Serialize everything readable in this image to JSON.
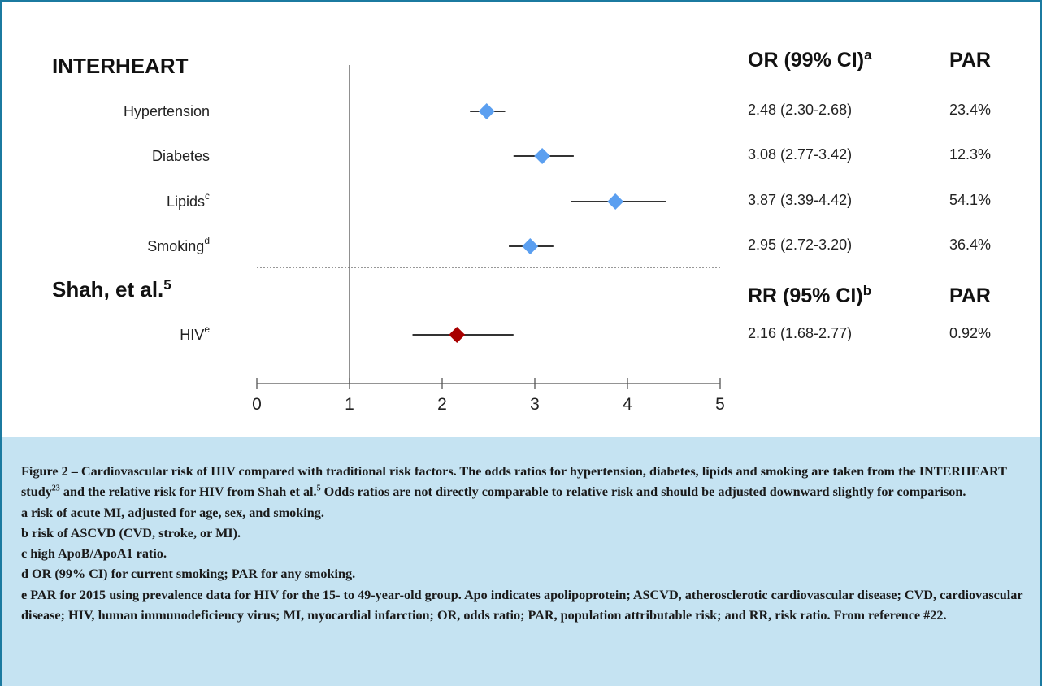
{
  "chart_data": {
    "type": "forest",
    "xlim": [
      0,
      5
    ],
    "xticks": [
      "0",
      "1",
      "2",
      "3",
      "4",
      "5"
    ],
    "reference_line": 1,
    "sections": [
      {
        "heading": "INTERHEART",
        "heading_sup": "",
        "col_header_stat": "OR (99% CI)",
        "col_header_stat_sup": "a",
        "col_header_par": "PAR",
        "rows": [
          {
            "label": "Hypertension",
            "sup": "",
            "estimate": 2.48,
            "lower": 2.3,
            "upper": 2.68,
            "stat_text": "2.48 (2.30-2.68)",
            "par_text": "23.4%",
            "color": "#5b9ff0"
          },
          {
            "label": "Diabetes",
            "sup": "",
            "estimate": 3.08,
            "lower": 2.77,
            "upper": 3.42,
            "stat_text": "3.08 (2.77-3.42)",
            "par_text": "12.3%",
            "color": "#5b9ff0"
          },
          {
            "label": "Lipids",
            "sup": "c",
            "estimate": 3.87,
            "lower": 3.39,
            "upper": 4.42,
            "stat_text": "3.87 (3.39-4.42)",
            "par_text": "54.1%",
            "color": "#5b9ff0"
          },
          {
            "label": "Smoking",
            "sup": "d",
            "estimate": 2.95,
            "lower": 2.72,
            "upper": 3.2,
            "stat_text": "2.95 (2.72-3.20)",
            "par_text": "36.4%",
            "color": "#5b9ff0"
          }
        ]
      },
      {
        "heading": "Shah, et al.",
        "heading_sup": "5",
        "col_header_stat": "RR (95% CI)",
        "col_header_stat_sup": "b",
        "col_header_par": "PAR",
        "rows": [
          {
            "label": "HIV",
            "sup": "e",
            "estimate": 2.16,
            "lower": 1.68,
            "upper": 2.77,
            "stat_text": "2.16 (1.68-2.77)",
            "par_text": "0.92%",
            "color": "#a80000"
          }
        ]
      }
    ]
  },
  "caption": {
    "p1_a": "Figure 2 – Cardiovascular risk of HIV compared with traditional risk factors. The odds ratios for hypertension, diabetes, lipids and smoking are taken from the INTERHEART study",
    "p1_sup1": "23",
    "p1_b": " and the relative risk for HIV from Shah et al.",
    "p1_sup2": "5",
    "p1_c": " Odds ratios are not directly comparable to relative risk and should be adjusted downward slightly for comparison.",
    "note_a": "a risk of acute MI, adjusted for age, sex, and smoking.",
    "note_b": "b risk of ASCVD (CVD, stroke, or MI).",
    "note_c": "c high ApoB/ApoA1 ratio.",
    "note_d": "d OR (99% CI) for current smoking; PAR for any smoking.",
    "note_e": "e PAR for 2015 using prevalence data for HIV for the 15- to 49-year-old group. Apo indicates apolipoprotein; ASCVD, atherosclerotic cardiovascular disease; CVD, cardiovascular disease; HIV, human immunodeficiency virus; MI, myocardial infarction; OR, odds ratio; PAR, population attributable risk; and RR, risk ratio. From reference #22."
  }
}
